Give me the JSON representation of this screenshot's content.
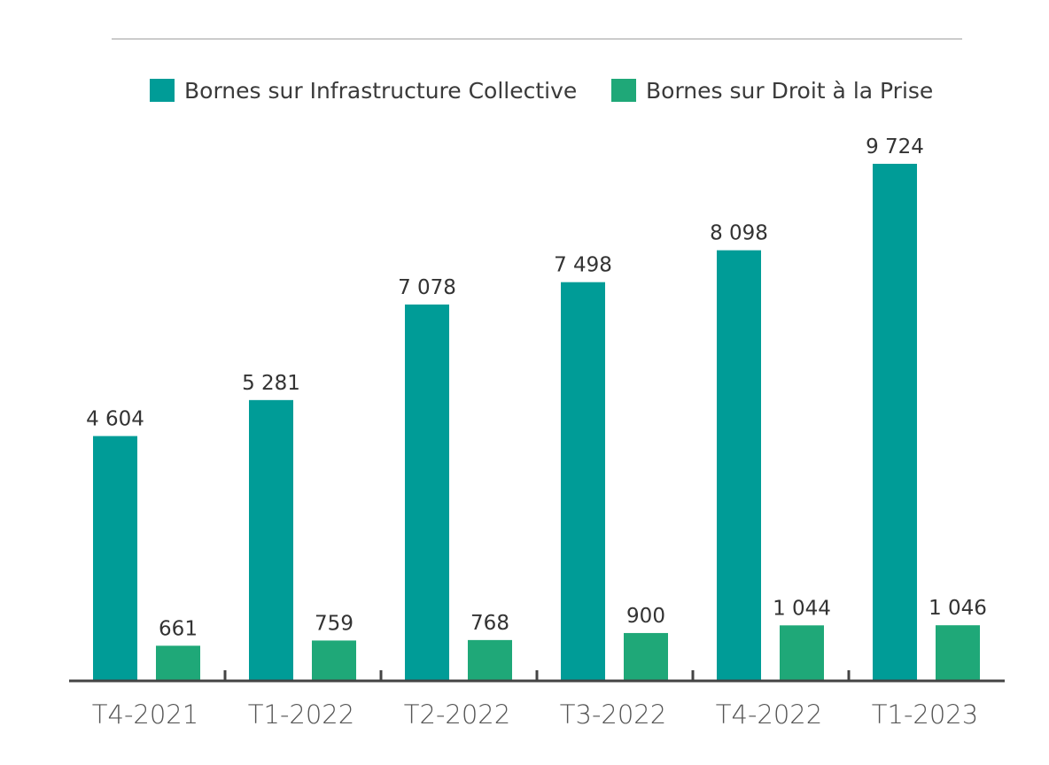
{
  "chart_data": {
    "type": "bar",
    "categories": [
      "T4-2021",
      "T1-2022",
      "T2-2022",
      "T3-2022",
      "T4-2022",
      "T1-2023"
    ],
    "series": [
      {
        "name": "Bornes sur Infrastructure Collective",
        "color": "#009c97",
        "values": [
          4604,
          5281,
          7078,
          7498,
          8098,
          9724
        ],
        "labels": [
          "4 604",
          "5 281",
          "7 078",
          "7 498",
          "8 098",
          "9 724"
        ]
      },
      {
        "name": "Bornes sur Droit à la Prise",
        "color": "#1fa878",
        "values": [
          661,
          759,
          768,
          900,
          1044,
          1046
        ],
        "labels": [
          "661",
          "759",
          "768",
          "900",
          "1 044",
          "1 046"
        ]
      }
    ],
    "ylim": [
      0,
      10000
    ],
    "grid": false,
    "legend_position": "top"
  }
}
